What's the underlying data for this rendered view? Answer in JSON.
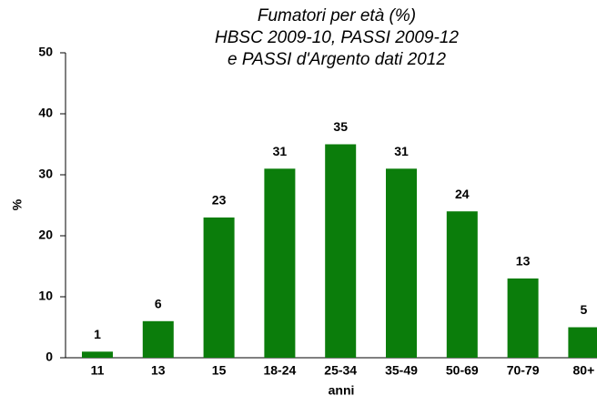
{
  "chart_data": {
    "type": "bar",
    "title": [
      "Fumatori per età (%)",
      "HBSC 2009-10, PASSI 2009-12",
      "e PASSI d'Argento dati 2012"
    ],
    "x_label": "anni",
    "y_label": "%",
    "categories": [
      "11",
      "13",
      "15",
      "18-24",
      "25-34",
      "35-49",
      "50-69",
      "70-79",
      "80+"
    ],
    "values": [
      1,
      6,
      23,
      31,
      35,
      31,
      24,
      13,
      5
    ],
    "color": "#0b7d0b",
    "ylim": [
      0,
      50
    ],
    "yticks": [
      0,
      10,
      20,
      30,
      40,
      50
    ],
    "grid": false
  }
}
